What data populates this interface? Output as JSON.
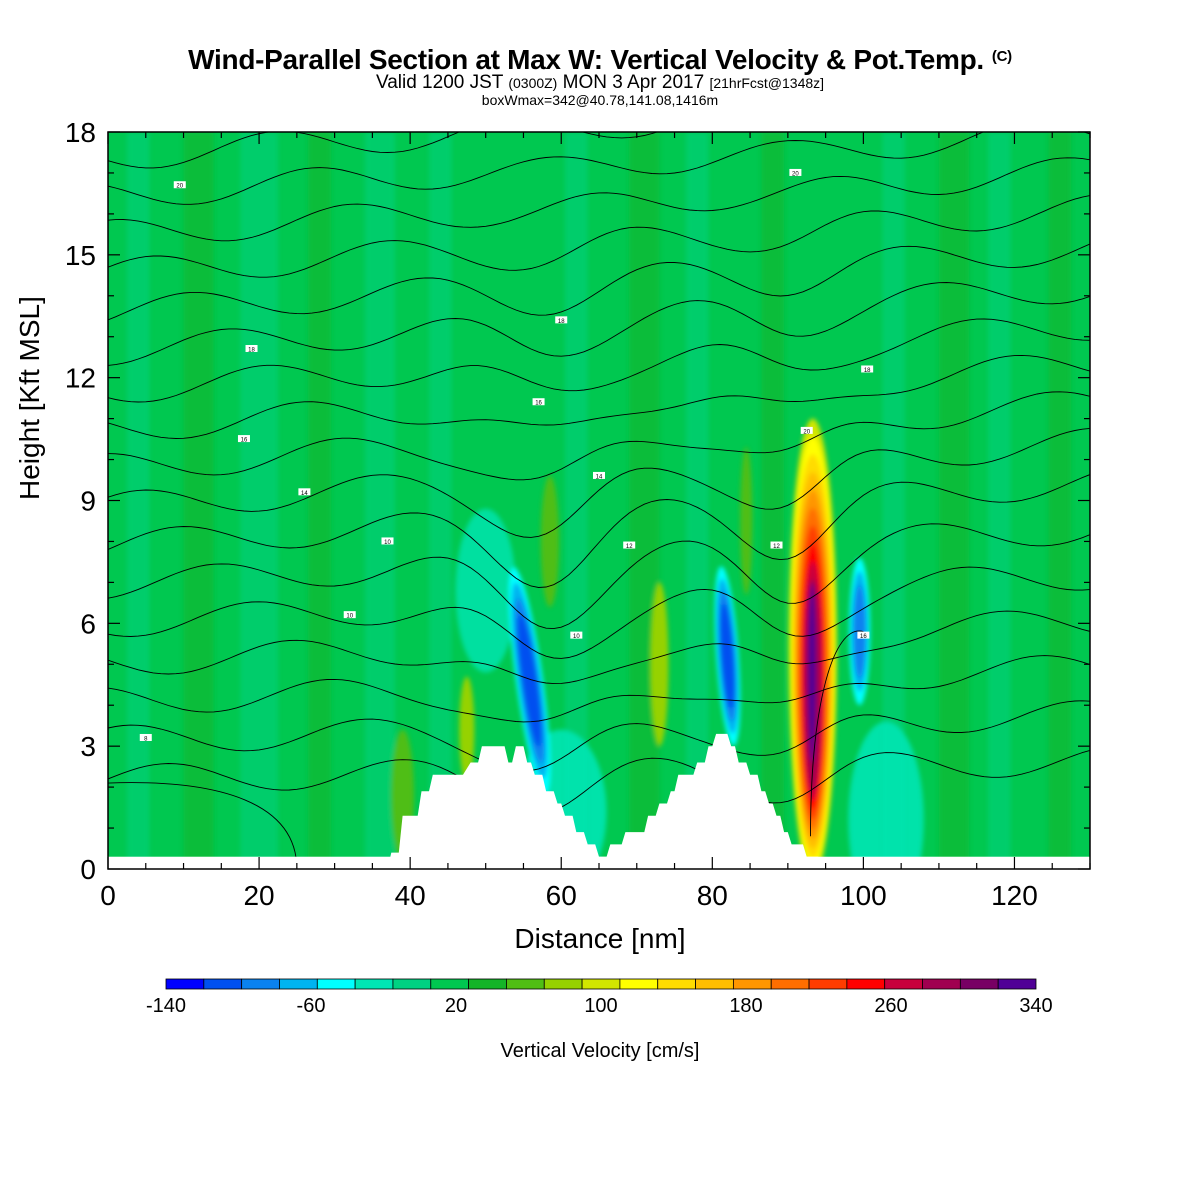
{
  "header": {
    "title": "Wind-Parallel Section at Max W: Vertical Velocity & Pot.Temp.",
    "copyright": "(C)",
    "subtitle_prefix": "Valid 1200 JST",
    "subtitle_utc": "(0300Z)",
    "subtitle_date": "MON 3 Apr 2017",
    "subtitle_fcst": "[21hrFcst@1348z]",
    "subsubtitle": "boxWmax=342@40.78,141.08,1416m"
  },
  "chart_data": {
    "type": "heatmap",
    "title": "Wind-Parallel Section at Max W: Vertical Velocity & Pot.Temp.",
    "xlabel": "Distance [nm]",
    "ylabel": "Height [Kft MSL]",
    "xlim": [
      0,
      130
    ],
    "ylim": [
      0,
      18
    ],
    "x_ticks": [
      0,
      20,
      40,
      60,
      80,
      100,
      120
    ],
    "y_ticks": [
      0,
      3,
      6,
      9,
      12,
      15,
      18
    ],
    "colorbar": {
      "label": "Vertical Velocity [cm/s]",
      "range": [
        -140,
        340
      ],
      "tick_labels": [
        "-140",
        "-60",
        "20",
        "100",
        "180",
        "260",
        "340"
      ],
      "colors": [
        "#0000ff",
        "#0050f0",
        "#0a82f0",
        "#00b4f0",
        "#00ffff",
        "#00e6b4",
        "#00d282",
        "#00c850",
        "#14b428",
        "#50be14",
        "#96d200",
        "#d2e600",
        "#ffff00",
        "#ffdc00",
        "#ffbe00",
        "#ff9600",
        "#ff6e00",
        "#ff3c00",
        "#ff0000",
        "#c8003c",
        "#a00050",
        "#780064",
        "#500096"
      ]
    },
    "features": [
      {
        "name": "updraft",
        "x": 93,
        "y_range": [
          0.5,
          11
        ],
        "peak": 342
      },
      {
        "name": "downdraft",
        "x": 56,
        "y_range": [
          2.5,
          7
        ],
        "min": -140
      },
      {
        "name": "downdraft",
        "x": 82,
        "y_range": [
          3,
          7
        ],
        "min": -140
      },
      {
        "name": "downdraft",
        "x": 99.5,
        "y_range": [
          4,
          7.5
        ],
        "min": -100
      }
    ],
    "terrain": [
      [
        37,
        0
      ],
      [
        37.5,
        0.4
      ],
      [
        38.5,
        0.4
      ],
      [
        39,
        1.3
      ],
      [
        41,
        1.3
      ],
      [
        41.5,
        1.9
      ],
      [
        42.5,
        1.9
      ],
      [
        43,
        2.3
      ],
      [
        47,
        2.3
      ],
      [
        48,
        2.6
      ],
      [
        49,
        2.6
      ],
      [
        49.5,
        3
      ],
      [
        52.5,
        3
      ],
      [
        53,
        2.6
      ],
      [
        53.5,
        2.6
      ],
      [
        54,
        3
      ],
      [
        55,
        3
      ],
      [
        55.5,
        2.6
      ],
      [
        56,
        2.6
      ],
      [
        56.5,
        2.3
      ],
      [
        57.5,
        2.3
      ],
      [
        58,
        1.9
      ],
      [
        59,
        1.9
      ],
      [
        59.5,
        1.6
      ],
      [
        60,
        1.6
      ],
      [
        60.5,
        1.3
      ],
      [
        61.5,
        1.3
      ],
      [
        62,
        0.9
      ],
      [
        63,
        0.9
      ],
      [
        63.5,
        0.6
      ],
      [
        64.5,
        0.6
      ],
      [
        65,
        0.3
      ],
      [
        66,
        0.3
      ],
      [
        66.5,
        0.6
      ],
      [
        68,
        0.6
      ],
      [
        68.5,
        0.9
      ],
      [
        71,
        0.9
      ],
      [
        71.5,
        1.3
      ],
      [
        72.5,
        1.3
      ],
      [
        73,
        1.6
      ],
      [
        74,
        1.6
      ],
      [
        74.5,
        1.9
      ],
      [
        75,
        1.9
      ],
      [
        75.5,
        2.3
      ],
      [
        77.5,
        2.3
      ],
      [
        78,
        2.6
      ],
      [
        79,
        2.6
      ],
      [
        79.5,
        3
      ],
      [
        80,
        3
      ],
      [
        80.5,
        3.3
      ],
      [
        82,
        3.3
      ],
      [
        82.5,
        3
      ],
      [
        83,
        3
      ],
      [
        83.5,
        2.6
      ],
      [
        84.5,
        2.6
      ],
      [
        85,
        2.3
      ],
      [
        86,
        2.3
      ],
      [
        86.5,
        1.9
      ],
      [
        87,
        1.9
      ],
      [
        87.5,
        1.6
      ],
      [
        88,
        1.6
      ],
      [
        88.5,
        1.3
      ],
      [
        89,
        1.3
      ],
      [
        89.5,
        0.9
      ],
      [
        90,
        0.9
      ],
      [
        90.5,
        0.6
      ],
      [
        92,
        0.6
      ],
      [
        92.5,
        0.3
      ],
      [
        94,
        0.3
      ],
      [
        94.5,
        0
      ],
      [
        130,
        0
      ]
    ],
    "theta_contour_labels": [
      "8",
      "10",
      "10",
      "10",
      "12",
      "12",
      "14",
      "14",
      "16",
      "16",
      "16",
      "18",
      "18",
      "18",
      "20",
      "20",
      "20"
    ]
  }
}
